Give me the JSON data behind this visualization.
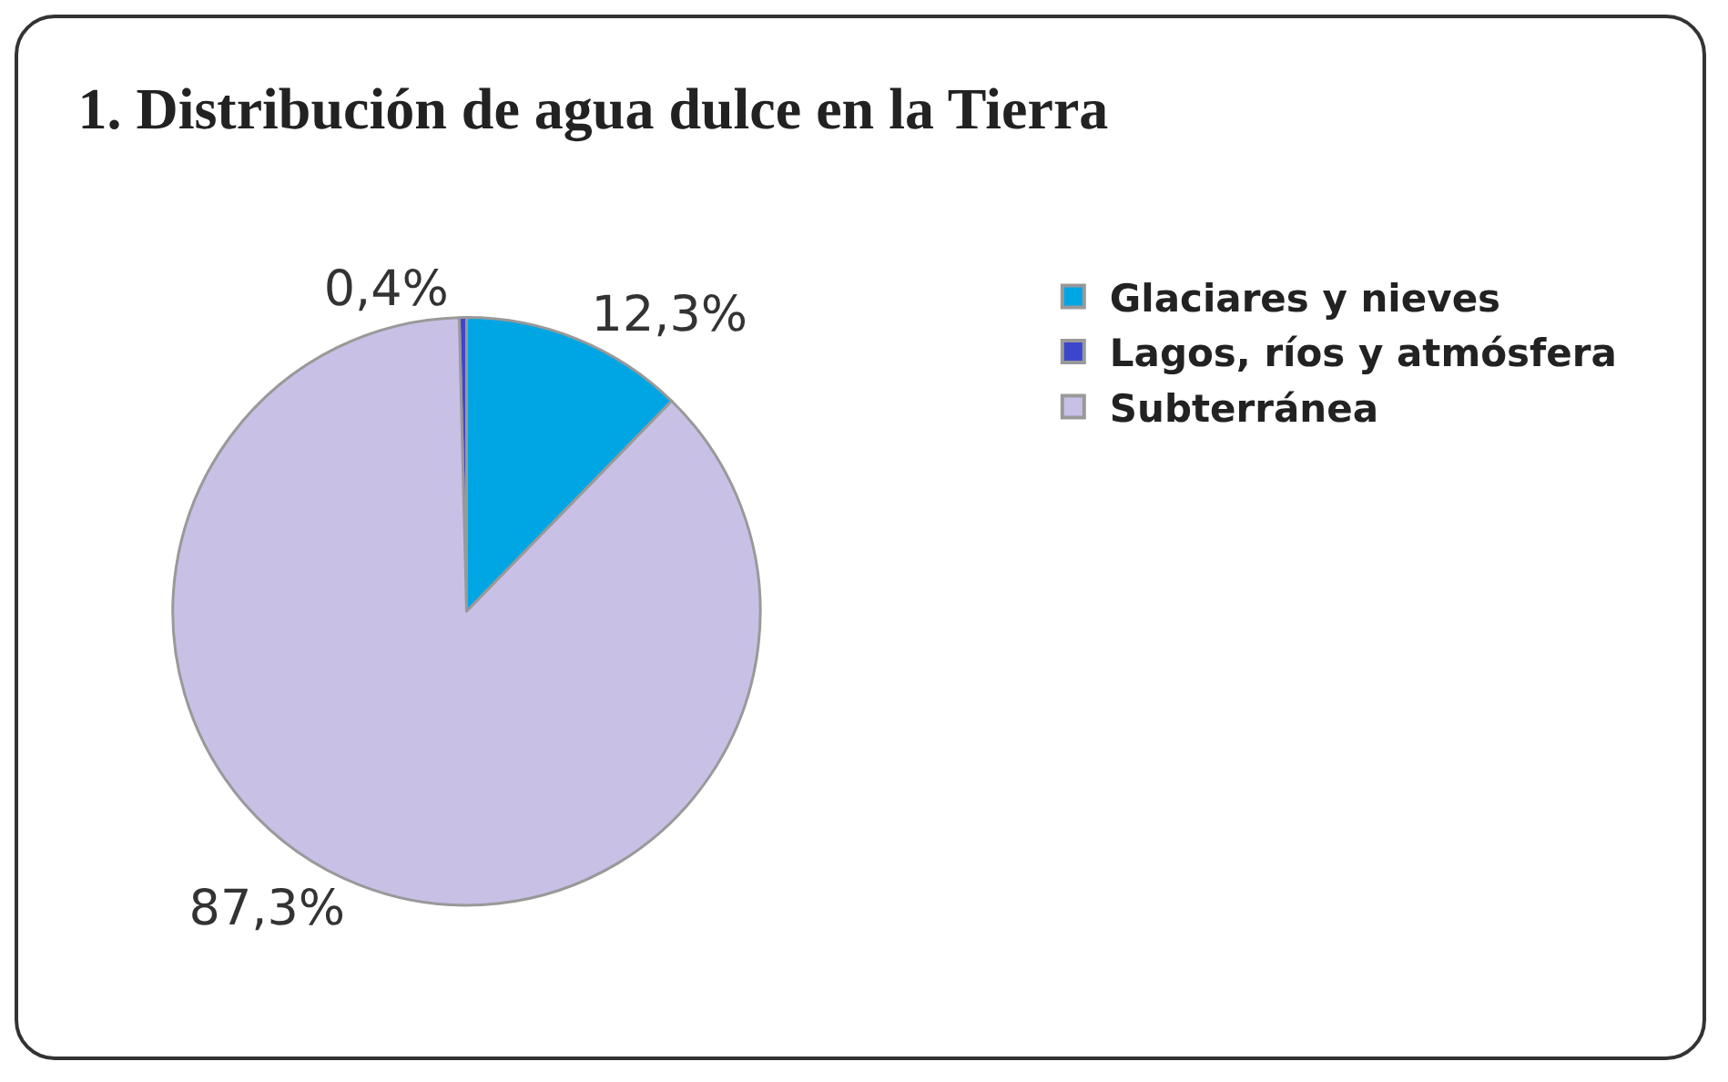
{
  "chart_data": {
    "type": "pie",
    "title": "1. Distribución de agua dulce en la Tierra",
    "categories": [
      "Glaciares y nieves",
      "Lagos, ríos y atmósfera",
      "Subterránea"
    ],
    "values": [
      12.3,
      0.4,
      87.3
    ],
    "colors": [
      "#00a6e4",
      "#3c46cc",
      "#c9c0e6"
    ],
    "value_labels": [
      "12,3%",
      "0,4%",
      "87,3%"
    ],
    "legend": "right"
  }
}
